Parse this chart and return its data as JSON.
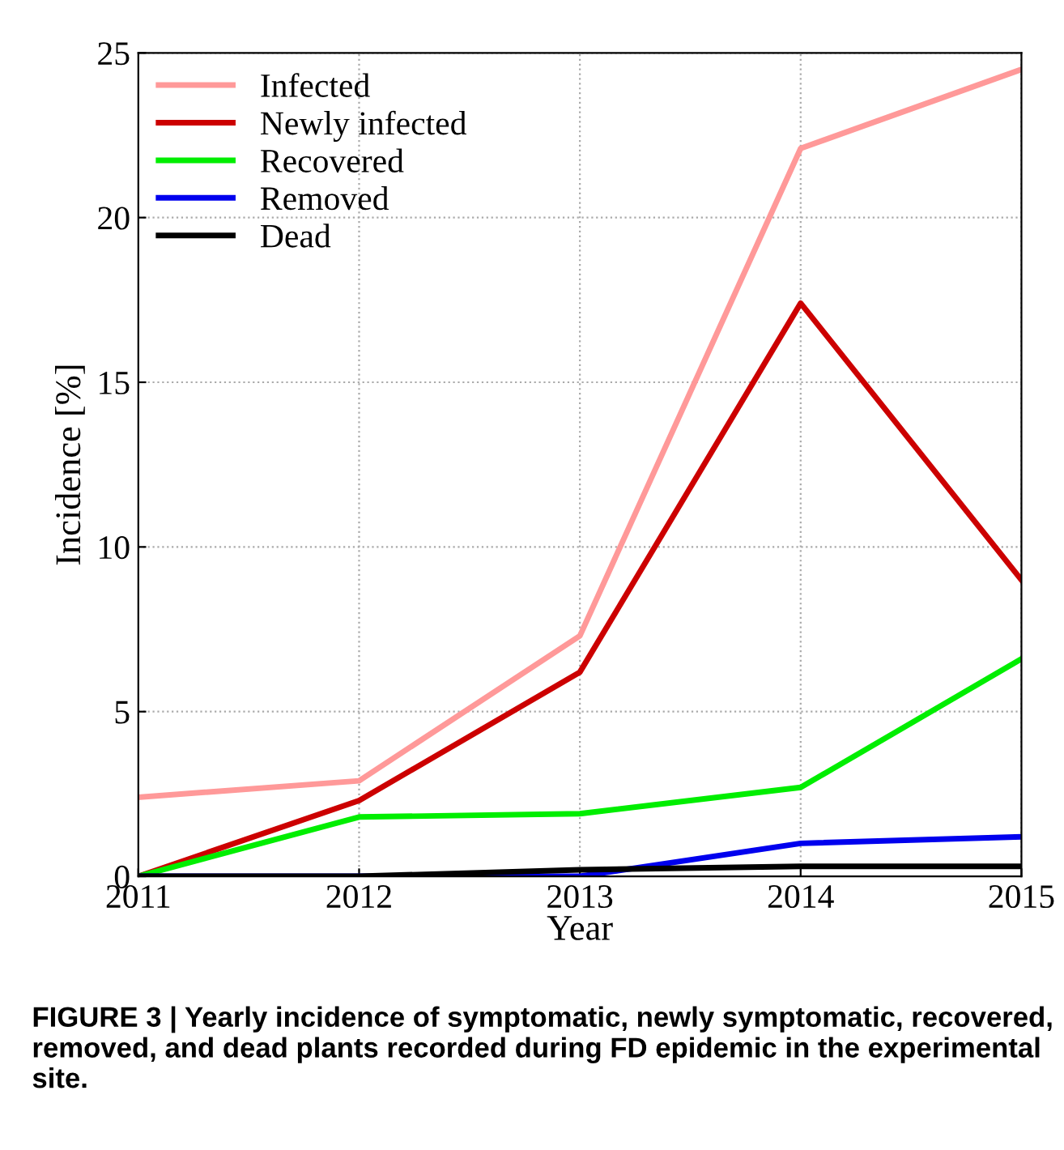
{
  "chart_data": {
    "type": "line",
    "xlabel": "Year",
    "ylabel": "Incidence [%]",
    "x": [
      2011,
      2012,
      2013,
      2014,
      2015
    ],
    "series": [
      {
        "name": "Infected",
        "color": "#ff9999",
        "values": [
          2.4,
          2.9,
          7.3,
          22.1,
          24.5
        ]
      },
      {
        "name": "Newly infected",
        "color": "#cc0000",
        "values": [
          0,
          2.3,
          6.2,
          17.4,
          9.0
        ]
      },
      {
        "name": "Recovered",
        "color": "#00ee00",
        "values": [
          0,
          1.8,
          1.9,
          2.7,
          6.6
        ]
      },
      {
        "name": "Removed",
        "color": "#0000ee",
        "values": [
          0,
          0,
          0,
          1.0,
          1.2
        ]
      },
      {
        "name": "Dead",
        "color": "#000000",
        "values": [
          0,
          0,
          0.2,
          0.3,
          0.3
        ]
      }
    ],
    "xlim": [
      2011,
      2015
    ],
    "xticks": [
      2011,
      2012,
      2013,
      2014,
      2015
    ],
    "ylim": [
      0,
      25
    ],
    "yticks": [
      0,
      5,
      10,
      15,
      20,
      25
    ],
    "grid": true,
    "legend": "top left",
    "line_style": "solid",
    "annotations": [
      "FIGURE 3 | Yearly incidence of symptomatic, newly symptomatic, recovered, removed, and dead plants recorded during FD epidemic in the experimental site."
    ]
  }
}
